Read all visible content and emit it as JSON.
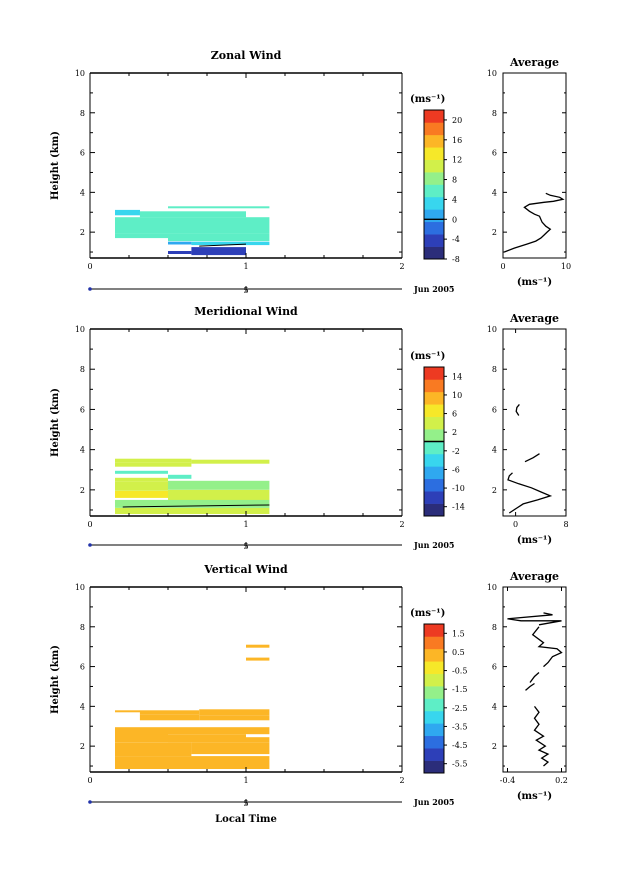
{
  "figure": {
    "xlabel": "Local Time",
    "date_label": "Jun 2005",
    "avg_title": "Average",
    "unit_label": "(ms⁻¹)",
    "ylabel": "Height (km)"
  },
  "chart_data": [
    {
      "type": "heatmap",
      "title": "Zonal Wind",
      "xlabel": "",
      "ylabel": "Height (km)",
      "xlim": [
        0,
        2
      ],
      "ylim": [
        0.7,
        10
      ],
      "xticks": [
        "0",
        "1",
        "2"
      ],
      "yticks": [
        "2",
        "4",
        "6",
        "8",
        "10"
      ],
      "day_marker": "5",
      "colorbar": {
        "label": "(ms⁻¹)",
        "range": [
          -8,
          22
        ],
        "ticks": [
          "-8",
          "-4",
          "0",
          "4",
          "8",
          "12",
          "16",
          "20"
        ],
        "contour_level": 0
      },
      "cells": [
        {
          "x0": 0.5,
          "x1": 1.15,
          "y0": 3.2,
          "y1": 3.3,
          "value": 4.5
        },
        {
          "x0": 0.16,
          "x1": 0.32,
          "y0": 2.85,
          "y1": 3.12,
          "value": 4.2
        },
        {
          "x0": 0.32,
          "x1": 1.0,
          "y0": 2.75,
          "y1": 3.05,
          "value": 4.6
        },
        {
          "x0": 0.16,
          "x1": 1.15,
          "y0": 1.95,
          "y1": 2.75,
          "value": 6.8
        },
        {
          "x0": 0.16,
          "x1": 0.5,
          "y0": 1.7,
          "y1": 1.95,
          "value": 6.2
        },
        {
          "x0": 0.5,
          "x1": 1.15,
          "y0": 1.55,
          "y1": 1.95,
          "value": 6.8
        },
        {
          "x0": 0.5,
          "x1": 0.65,
          "y0": 1.38,
          "y1": 1.52,
          "value": 1.5
        },
        {
          "x0": 0.65,
          "x1": 1.15,
          "y0": 1.35,
          "y1": 1.52,
          "value": 3.2
        },
        {
          "x0": 0.5,
          "x1": 0.65,
          "y0": 0.9,
          "y1": 1.05,
          "value": -3.5
        },
        {
          "x0": 0.65,
          "x1": 1.0,
          "y0": 0.85,
          "y1": 1.25,
          "value": -5.0
        }
      ],
      "average_profile": {
        "title": "Average",
        "xlabel": "(ms⁻¹)",
        "xlim": [
          0,
          10
        ],
        "xticks": [
          "0",
          "10"
        ],
        "ylim": [
          0.7,
          10
        ],
        "yticks": [
          "2",
          "4",
          "6",
          "8",
          "10"
        ],
        "segments": [
          [
            [
              0.2,
              1.0
            ],
            [
              1.8,
              1.2
            ],
            [
              3.8,
              1.4
            ],
            [
              5.2,
              1.55
            ],
            [
              6.0,
              1.7
            ],
            [
              6.5,
              1.85
            ],
            [
              7.0,
              2.0
            ],
            [
              7.5,
              2.15
            ],
            [
              6.8,
              2.3
            ],
            [
              6.2,
              2.5
            ],
            [
              5.8,
              2.8
            ],
            [
              5.0,
              2.9
            ],
            [
              4.2,
              3.05
            ],
            [
              3.4,
              3.25
            ],
            [
              4.2,
              3.4
            ],
            [
              6.5,
              3.5
            ],
            [
              8.0,
              3.55
            ],
            [
              9.5,
              3.65
            ],
            [
              9.0,
              3.75
            ],
            [
              7.5,
              3.85
            ],
            [
              6.8,
              3.95
            ]
          ]
        ]
      }
    },
    {
      "type": "heatmap",
      "title": "Meridional Wind",
      "xlabel": "",
      "ylabel": "Height (km)",
      "xlim": [
        0,
        2
      ],
      "ylim": [
        0.7,
        10
      ],
      "xticks": [
        "0",
        "1",
        "2"
      ],
      "yticks": [
        "2",
        "4",
        "6",
        "8",
        "10"
      ],
      "day_marker": "5",
      "colorbar": {
        "label": "(ms⁻¹)",
        "range": [
          -16,
          16
        ],
        "ticks": [
          "-14",
          "-10",
          "-6",
          "-2",
          "2",
          "6",
          "10",
          "14"
        ],
        "contour_level": 0
      },
      "cells": [
        {
          "x0": 0.16,
          "x1": 0.65,
          "y0": 3.35,
          "y1": 3.55,
          "value": 4.2
        },
        {
          "x0": 0.65,
          "x1": 1.15,
          "y0": 3.3,
          "y1": 3.5,
          "value": 3.5
        },
        {
          "x0": 0.16,
          "x1": 0.65,
          "y0": 3.15,
          "y1": 3.35,
          "value": 3.8
        },
        {
          "x0": 0.16,
          "x1": 0.5,
          "y0": 2.8,
          "y1": 2.95,
          "value": -1.5
        },
        {
          "x0": 0.5,
          "x1": 0.65,
          "y0": 2.55,
          "y1": 2.75,
          "value": -1.5
        },
        {
          "x0": 0.16,
          "x1": 0.5,
          "y0": 2.4,
          "y1": 2.6,
          "value": 3.0
        },
        {
          "x0": 0.5,
          "x1": 1.15,
          "y0": 2.0,
          "y1": 2.45,
          "value": 2.5
        },
        {
          "x0": 0.16,
          "x1": 0.5,
          "y0": 1.95,
          "y1": 2.4,
          "value": 3.6
        },
        {
          "x0": 0.16,
          "x1": 0.5,
          "y0": 1.6,
          "y1": 1.95,
          "value": 5.8
        },
        {
          "x0": 0.5,
          "x1": 1.15,
          "y0": 1.5,
          "y1": 2.0,
          "value": 4.8
        },
        {
          "x0": 0.16,
          "x1": 1.15,
          "y0": 1.1,
          "y1": 1.5,
          "value": 2.6
        },
        {
          "x0": 0.16,
          "x1": 1.15,
          "y0": 0.8,
          "y1": 1.1,
          "value": 3.5
        }
      ],
      "average_profile": {
        "title": "Average",
        "xlabel": "(ms⁻¹)",
        "xlim": [
          -2,
          8
        ],
        "xticks": [
          "0",
          "8"
        ],
        "ylim": [
          0.7,
          10
        ],
        "yticks": [
          "2",
          "4",
          "6",
          "8",
          "10"
        ],
        "segments": [
          [
            [
              0.5,
              5.7
            ],
            [
              0.1,
              5.9
            ],
            [
              0.2,
              6.1
            ],
            [
              0.6,
              6.25
            ]
          ],
          [
            [
              1.5,
              3.4
            ],
            [
              2.8,
              3.6
            ],
            [
              3.8,
              3.8
            ]
          ],
          [
            [
              -0.5,
              2.85
            ],
            [
              -1.0,
              2.7
            ],
            [
              -1.2,
              2.5
            ],
            [
              0.5,
              2.3
            ],
            [
              2.5,
              2.1
            ],
            [
              4.0,
              1.9
            ],
            [
              5.5,
              1.7
            ],
            [
              3.5,
              1.5
            ],
            [
              1.2,
              1.3
            ],
            [
              0.2,
              1.1
            ],
            [
              -1.0,
              0.85
            ]
          ]
        ]
      }
    },
    {
      "type": "heatmap",
      "title": "Vertical Wind",
      "xlabel": "Local Time",
      "ylabel": "Height (km)",
      "xlim": [
        0,
        2
      ],
      "ylim": [
        0.7,
        10
      ],
      "xticks": [
        "0",
        "1",
        "2"
      ],
      "yticks": [
        "2",
        "4",
        "6",
        "8",
        "10"
      ],
      "day_marker": "5",
      "colorbar": {
        "label": "(ms⁻¹)",
        "range": [
          -6,
          2
        ],
        "ticks": [
          "-5.5",
          "-4.5",
          "-3.5",
          "-2.5",
          "-1.5",
          "-0.5",
          "0.5",
          "1.5"
        ],
        "contour_level": null
      },
      "cells": [
        {
          "x0": 1.0,
          "x1": 1.15,
          "y0": 6.95,
          "y1": 7.1,
          "value": 0.4
        },
        {
          "x0": 1.0,
          "x1": 1.15,
          "y0": 6.3,
          "y1": 6.45,
          "value": 0.5
        },
        {
          "x0": 0.16,
          "x1": 0.32,
          "y0": 3.7,
          "y1": 3.8,
          "value": 0.4
        },
        {
          "x0": 0.32,
          "x1": 0.7,
          "y0": 3.6,
          "y1": 3.8,
          "value": 0.5
        },
        {
          "x0": 0.7,
          "x1": 1.15,
          "y0": 3.55,
          "y1": 3.85,
          "value": 0.0
        },
        {
          "x0": 0.32,
          "x1": 0.7,
          "y0": 3.3,
          "y1": 3.6,
          "value": 0.1
        },
        {
          "x0": 0.7,
          "x1": 1.15,
          "y0": 3.3,
          "y1": 3.55,
          "value": 0.0
        },
        {
          "x0": 0.16,
          "x1": 0.5,
          "y0": 2.2,
          "y1": 2.95,
          "value": 0.5
        },
        {
          "x0": 0.5,
          "x1": 1.15,
          "y0": 2.6,
          "y1": 2.95,
          "value": 0.3
        },
        {
          "x0": 0.5,
          "x1": 1.0,
          "y0": 2.2,
          "y1": 2.6,
          "value": 0.6
        },
        {
          "x0": 1.0,
          "x1": 1.15,
          "y0": 2.2,
          "y1": 2.45,
          "value": 0.2
        },
        {
          "x0": 0.16,
          "x1": 0.65,
          "y0": 1.5,
          "y1": 2.2,
          "value": 0.4
        },
        {
          "x0": 0.65,
          "x1": 1.15,
          "y0": 1.6,
          "y1": 2.2,
          "value": 0.2
        },
        {
          "x0": 0.16,
          "x1": 1.15,
          "y0": 0.85,
          "y1": 1.5,
          "value": 0.5
        }
      ],
      "average_profile": {
        "title": "Average",
        "xlabel": "(ms⁻¹)",
        "xlim": [
          -0.45,
          0.25
        ],
        "xticks": [
          "-0.4",
          "0.2"
        ],
        "ylim": [
          0.7,
          10
        ],
        "yticks": [
          "2",
          "4",
          "6",
          "8",
          "10"
        ],
        "segments": [
          [
            [
              -0.05,
              8.1
            ],
            [
              0.2,
              8.3
            ],
            [
              -0.25,
              8.3
            ],
            [
              -0.4,
              8.4
            ],
            [
              0.1,
              8.6
            ],
            [
              0.0,
              8.7
            ]
          ],
          [
            [
              -0.05,
              8.0
            ],
            [
              -0.12,
              7.6
            ],
            [
              0.0,
              7.2
            ],
            [
              -0.05,
              7.0
            ],
            [
              0.15,
              6.9
            ],
            [
              0.2,
              6.7
            ],
            [
              0.1,
              6.5
            ],
            [
              0.05,
              6.2
            ],
            [
              0.0,
              6.0
            ]
          ],
          [
            [
              -0.15,
              5.2
            ],
            [
              -0.1,
              5.5
            ],
            [
              -0.05,
              5.7
            ]
          ],
          [
            [
              -0.2,
              4.8
            ],
            [
              -0.15,
              5.0
            ],
            [
              -0.1,
              5.15
            ]
          ],
          [
            [
              -0.1,
              4.0
            ],
            [
              -0.05,
              3.7
            ],
            [
              -0.1,
              3.4
            ],
            [
              -0.05,
              3.1
            ],
            [
              -0.1,
              2.8
            ],
            [
              0.0,
              2.5
            ],
            [
              -0.08,
              2.3
            ],
            [
              0.02,
              2.0
            ],
            [
              -0.05,
              1.8
            ],
            [
              0.05,
              1.6
            ],
            [
              -0.02,
              1.4
            ],
            [
              0.05,
              1.2
            ],
            [
              0.0,
              1.0
            ]
          ]
        ]
      }
    }
  ]
}
